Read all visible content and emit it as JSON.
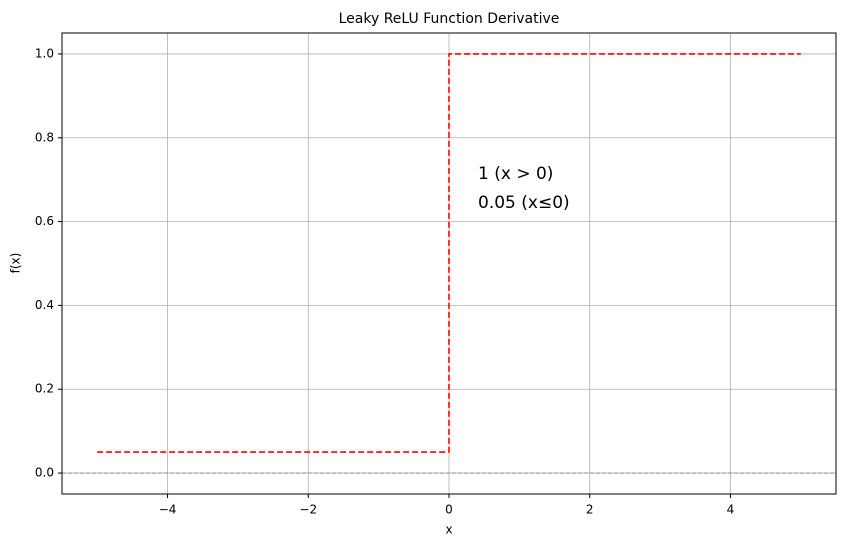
{
  "chart_data": {
    "type": "line",
    "title": "Leaky ReLU Function Derivative",
    "x_label": "x",
    "y_label": "f(x)",
    "x": [
      -5,
      0,
      0,
      5
    ],
    "series": [
      {
        "color": "#ff0000",
        "values": [
          0.05,
          0.05,
          1,
          1
        ],
        "dashed": true
      }
    ],
    "xlim": [
      -5.5,
      5.5
    ],
    "ylim": [
      -0.05,
      1.05
    ],
    "xticks": [
      {
        "value": -4,
        "label": "−4"
      },
      {
        "value": -2,
        "label": "−2"
      },
      0,
      2,
      4
    ],
    "yticks": [
      {
        "value": 0,
        "label": "0.0"
      },
      0.2,
      0.4,
      0.6,
      0.8,
      {
        "value": 1,
        "label": "1.0"
      }
    ],
    "grid": true,
    "reference_line": {
      "y": 0,
      "color": "#808080",
      "dashed": true
    },
    "annotations": [
      {
        "text": "1 (x > 0)",
        "color": "#ff0000"
      },
      {
        "text": "0.05 (x≤0)",
        "color": "#ff0000"
      }
    ]
  }
}
